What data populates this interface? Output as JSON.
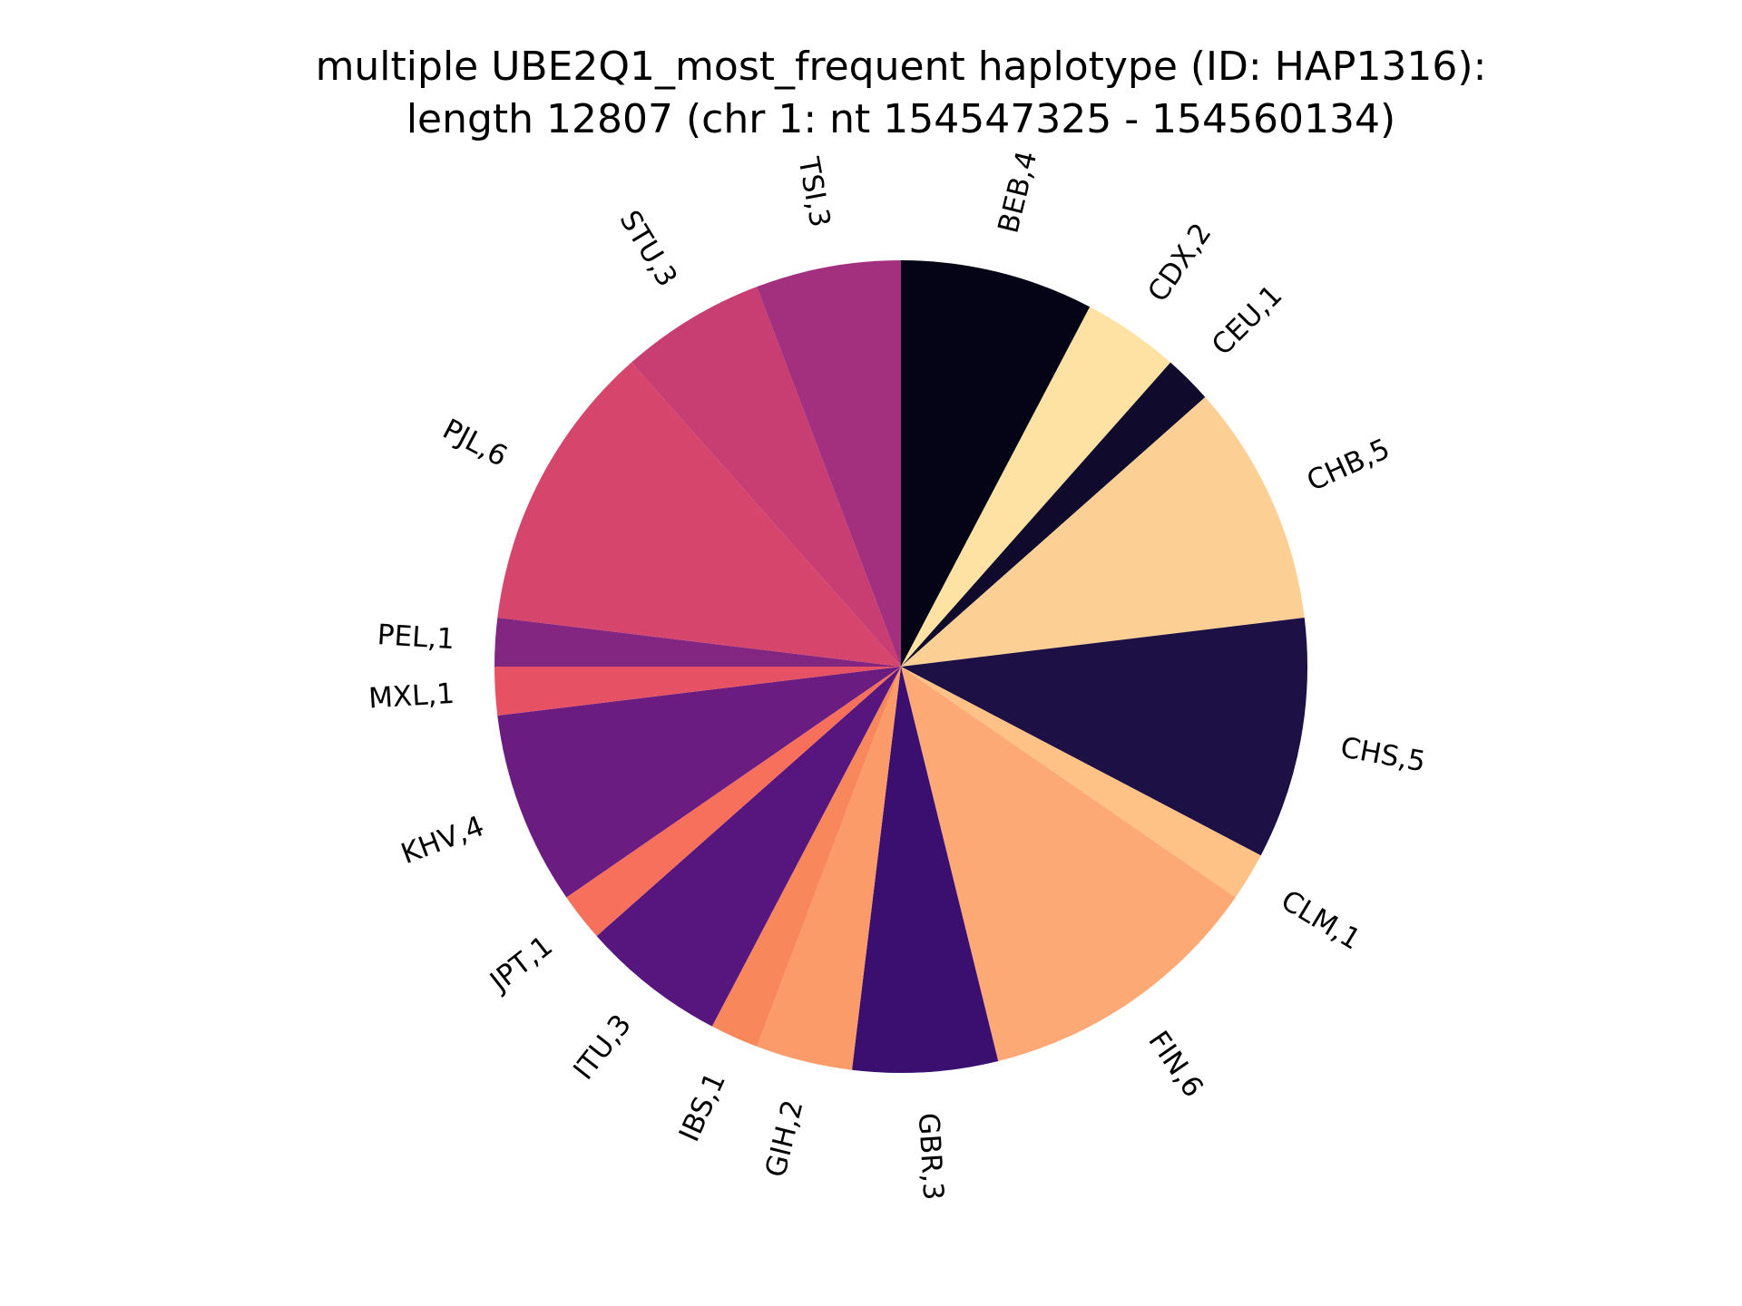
{
  "chart_data": {
    "type": "pie",
    "title_lines": [
      "multiple UBE2Q1_most_frequent haplotype (ID: HAP1316):",
      "length 12807 (chr 1: nt 154547325 - 154560134)"
    ],
    "slices": [
      {
        "label": "BEB,4",
        "value": 4,
        "color": "#050416"
      },
      {
        "label": "CDX,2",
        "value": 2,
        "color": "#fde2a3"
      },
      {
        "label": "CEU,1",
        "value": 1,
        "color": "#100b2d"
      },
      {
        "label": "CHB,5",
        "value": 5,
        "color": "#fcd095"
      },
      {
        "label": "CHS,5",
        "value": 5,
        "color": "#1c1044"
      },
      {
        "label": "CLM,1",
        "value": 1,
        "color": "#fec287"
      },
      {
        "label": "FIN,6",
        "value": 6,
        "color": "#fca976"
      },
      {
        "label": "GBR,3",
        "value": 3,
        "color": "#3b0f70"
      },
      {
        "label": "GIH,2",
        "value": 2,
        "color": "#fc9b6a"
      },
      {
        "label": "IBS,1",
        "value": 1,
        "color": "#f8875b"
      },
      {
        "label": "ITU,3",
        "value": 3,
        "color": "#57157e"
      },
      {
        "label": "JPT,1",
        "value": 1,
        "color": "#f6705c"
      },
      {
        "label": "KHV,4",
        "value": 4,
        "color": "#6a1c81"
      },
      {
        "label": "MXL,1",
        "value": 1,
        "color": "#e65164"
      },
      {
        "label": "PEL,1",
        "value": 1,
        "color": "#832681"
      },
      {
        "label": "PJL,6",
        "value": 6,
        "color": "#d6456c"
      },
      {
        "label": "STU,3",
        "value": 3,
        "color": "#c83e73"
      },
      {
        "label": "TSI,3",
        "value": 3,
        "color": "#a3307e"
      }
    ],
    "start_angle": "12 o'clock",
    "direction": "clockwise",
    "legend": "none",
    "grid": false
  }
}
